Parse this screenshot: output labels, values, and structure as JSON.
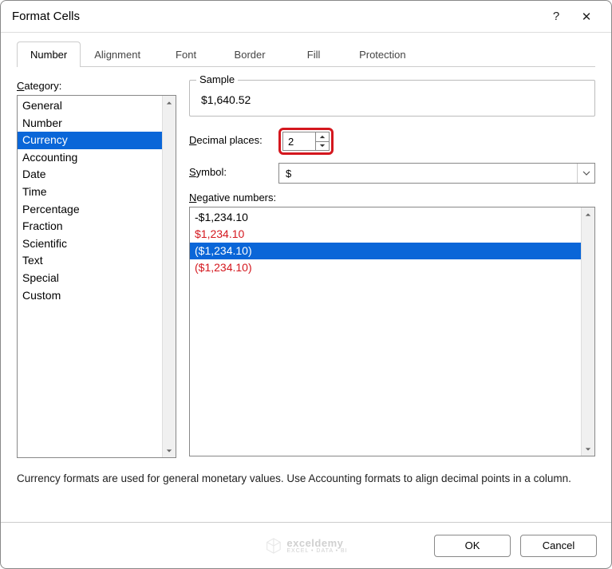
{
  "window": {
    "title": "Format Cells",
    "help_icon": "?",
    "close_icon": "✕"
  },
  "tabs": [
    {
      "label": "Number",
      "active": true
    },
    {
      "label": "Alignment",
      "active": false
    },
    {
      "label": "Font",
      "active": false
    },
    {
      "label": "Border",
      "active": false
    },
    {
      "label": "Fill",
      "active": false
    },
    {
      "label": "Protection",
      "active": false
    }
  ],
  "category": {
    "label_pre": "C",
    "label_post": "ategory:",
    "items": [
      "General",
      "Number",
      "Currency",
      "Accounting",
      "Date",
      "Time",
      "Percentage",
      "Fraction",
      "Scientific",
      "Text",
      "Special",
      "Custom"
    ],
    "selected_index": 2
  },
  "sample": {
    "label": "Sample",
    "value": "$1,640.52"
  },
  "decimal": {
    "label_pre": "D",
    "label_post": "ecimal places:",
    "value": "2",
    "highlight_color": "#d4171e"
  },
  "symbol": {
    "label_pre": "S",
    "label_post": "ymbol:",
    "value": "$"
  },
  "negative": {
    "label_pre": "N",
    "label_post": "egative numbers:",
    "items": [
      {
        "text": "-$1,234.10",
        "color": "#000000",
        "selected": false
      },
      {
        "text": "$1,234.10",
        "color": "#d4171e",
        "selected": false
      },
      {
        "text": "($1,234.10)",
        "color": "#ffffff",
        "selected": true
      },
      {
        "text": "($1,234.10)",
        "color": "#d4171e",
        "selected": false
      }
    ]
  },
  "description": "Currency formats are used for general monetary values.  Use Accounting formats to align decimal points in a column.",
  "buttons": {
    "ok": "OK",
    "cancel": "Cancel"
  },
  "watermark": {
    "name": "exceldemy",
    "tag": "EXCEL • DATA • BI"
  },
  "colors": {
    "selection": "#0a66d8",
    "border": "#888888",
    "text": "#000000"
  }
}
